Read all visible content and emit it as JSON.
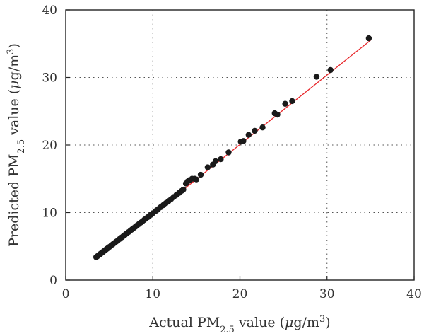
{
  "chart_data": {
    "type": "scatter",
    "title": "",
    "xlabel": {
      "prefix": "Actual PM",
      "subscript": "2.5",
      "middle": " value (",
      "unit_italic": "μ",
      "unit_rest": "g/m",
      "superscript": "3",
      "suffix": ")"
    },
    "ylabel": {
      "prefix": "Predicted PM",
      "subscript": "2.5",
      "middle": " value (",
      "unit_italic": "μ",
      "unit_rest": "g/m",
      "superscript": "3",
      "suffix": ")"
    },
    "xlim": [
      0,
      40
    ],
    "ylim": [
      0,
      40
    ],
    "xticks": [
      0,
      10,
      20,
      30,
      40
    ],
    "yticks": [
      0,
      10,
      20,
      30,
      40
    ],
    "grid": true,
    "colors": {
      "points": "#1a1a1a",
      "fit_line": "#e8262a"
    },
    "fit_line": {
      "x": [
        3.5,
        35.0
      ],
      "y": [
        3.1,
        35.5
      ]
    },
    "series": [
      {
        "x": [
          3.5,
          3.6,
          3.7,
          3.8,
          3.9,
          4.0,
          4.1,
          4.2,
          4.3,
          4.4,
          4.5,
          4.6,
          4.7,
          4.8,
          4.9,
          5.0,
          5.2,
          5.4,
          5.6,
          5.8,
          6.0,
          6.2,
          6.4,
          6.6,
          6.8,
          7.0,
          7.2,
          7.4,
          7.6,
          7.8,
          8.0,
          8.2,
          8.4,
          8.6,
          8.8,
          9.0,
          9.2,
          9.4,
          9.6,
          9.8,
          10.0,
          10.3,
          10.6,
          10.9,
          11.2,
          11.5,
          11.8,
          12.1,
          12.4,
          12.7,
          13.0,
          13.3,
          13.5,
          13.8,
          14.0,
          14.2,
          14.5,
          14.8,
          15.0,
          15.5,
          16.3,
          16.9,
          17.2,
          17.8,
          18.7,
          20.1,
          20.4,
          21.0,
          21.7,
          22.6,
          24.0,
          24.3,
          25.2,
          26.0,
          28.8,
          30.4,
          34.8
        ],
        "y": [
          3.4,
          3.5,
          3.6,
          3.7,
          3.8,
          3.9,
          4.0,
          4.1,
          4.2,
          4.3,
          4.4,
          4.5,
          4.6,
          4.7,
          4.8,
          4.9,
          5.1,
          5.3,
          5.5,
          5.7,
          5.9,
          6.1,
          6.3,
          6.5,
          6.7,
          6.9,
          7.1,
          7.3,
          7.5,
          7.7,
          7.9,
          8.1,
          8.3,
          8.5,
          8.7,
          8.9,
          9.1,
          9.3,
          9.5,
          9.7,
          9.9,
          10.2,
          10.5,
          10.8,
          11.1,
          11.4,
          11.7,
          12.0,
          12.3,
          12.6,
          12.9,
          13.2,
          13.4,
          14.3,
          14.6,
          14.8,
          15.0,
          15.0,
          14.9,
          15.6,
          16.7,
          17.1,
          17.6,
          17.9,
          18.9,
          20.5,
          20.6,
          21.5,
          22.1,
          22.6,
          24.7,
          24.5,
          26.1,
          26.5,
          30.1,
          31.1,
          35.8
        ]
      }
    ]
  }
}
